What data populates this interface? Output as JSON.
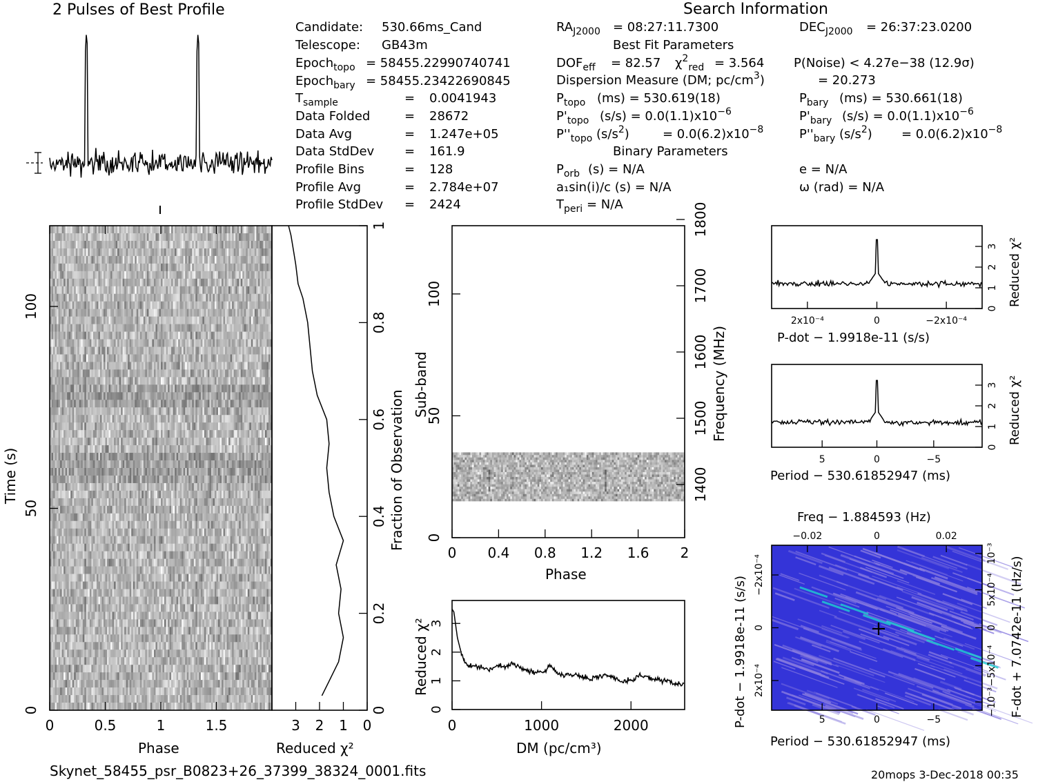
{
  "title": "2 Pulses of Best Profile",
  "search_info": {
    "heading": "Search Information",
    "best_fit_heading": "Best Fit Parameters",
    "binary_heading": "Binary Parameters"
  },
  "candidate_info": [
    {
      "label": "Candidate:",
      "value": "530.66ms_Cand"
    },
    {
      "label": "Telescope:",
      "value": "GB43m"
    },
    {
      "label": "Epoch_topo",
      "value": "= 58455.22990740741"
    },
    {
      "label": "Epoch_bary",
      "value": "= 58455.23422690845"
    },
    {
      "label": "T_sample",
      "value": "0.0041943"
    },
    {
      "label": "Data Folded",
      "value": "28672"
    },
    {
      "label": "Data Avg",
      "value": "1.247e+05"
    },
    {
      "label": "Data StdDev",
      "value": "161.9"
    },
    {
      "label": "Profile Bins",
      "value": "128"
    },
    {
      "label": "Profile Avg",
      "value": "2.784e+07"
    },
    {
      "label": "Profile StdDev",
      "value": "2424"
    }
  ],
  "search_values": {
    "ra": "= 08:27:11.7300",
    "dec": "= 26:37:23.0200",
    "dof": "= 82.57",
    "chi2": "= 3.564",
    "pnoise": "P(Noise) < 4.27e−38  (12.9σ)",
    "dm": "= 20.273",
    "p_topo": "(ms) =  530.619(18)",
    "p_bary": "(ms) =  530.661(18)",
    "pd_topo": "(s/s) = 0.0(1.1)x10",
    "pd_bary": "(s/s) = 0.0(1.1)x10",
    "pdd_topo": "= 0.0(6.2)x10",
    "pdd_bary": "= 0.0(6.2)x10",
    "p_orb": "(s) = N/A",
    "a1sini": "a₁sin(i)/c (s) = N/A",
    "t_peri": "= N/A",
    "e": "e = N/A",
    "omega": "ω (rad) = N/A"
  },
  "footer": {
    "filename": "Skynet_58455_psr_B0823+26_37399_38324_0001.fits",
    "stamp": "20mops   3-Dec-2018 00:35"
  },
  "chart_data": [
    {
      "type": "line",
      "name": "profile",
      "title": "2 Pulses of Best Profile",
      "x": [
        0,
        2
      ],
      "pulse_phases": [
        0.33,
        1.33
      ],
      "xlabel": "",
      "ylabel": ""
    },
    {
      "type": "heatmap",
      "name": "time-phase",
      "xlabel": "Phase",
      "ylabel": "Time (s)",
      "xlim": [
        0,
        2
      ],
      "ylim": [
        0,
        120
      ],
      "xticks": [
        "0",
        "0.5",
        "1",
        "1.5"
      ],
      "yticks": [
        "0",
        "50",
        "100"
      ]
    },
    {
      "type": "line",
      "name": "chi2-vs-time",
      "xlabel": "Reduced χ²",
      "ylabel": "Fraction of Observation",
      "xlim": [
        4,
        0
      ],
      "ylim": [
        0,
        1
      ],
      "xticks": [
        "3",
        "2",
        "1",
        "0"
      ],
      "yticks": [
        "0",
        "0.2",
        "0.4",
        "0.6",
        "0.8",
        "1"
      ],
      "x": [
        1.9,
        1.6,
        1.2,
        1.0,
        1.2,
        1.1,
        1.3,
        1.0,
        1.4,
        1.6,
        1.7,
        1.6,
        1.7,
        2.1,
        2.3,
        2.4,
        2.5,
        2.7,
        2.9,
        3.0,
        3.1,
        3.2,
        3.3
      ],
      "y": [
        0.03,
        0.06,
        0.1,
        0.15,
        0.2,
        0.25,
        0.3,
        0.35,
        0.4,
        0.45,
        0.5,
        0.55,
        0.6,
        0.65,
        0.7,
        0.75,
        0.8,
        0.85,
        0.88,
        0.92,
        0.95,
        0.98,
        1.0
      ]
    },
    {
      "type": "heatmap",
      "name": "subband-phase",
      "xlabel": "Phase",
      "ylabel": "Sub-band",
      "y2label": "Frequency (MHz)",
      "xlim": [
        0,
        2
      ],
      "ylim": [
        0,
        128
      ],
      "xticks": [
        "0",
        "0.4",
        "0.8",
        "1.2",
        "1.6",
        "2"
      ],
      "yticks": [
        "0",
        "50",
        "100"
      ],
      "y2ticks": [
        "1400",
        "1500",
        "1600",
        "1700",
        "1800"
      ],
      "band": [
        15,
        35
      ]
    },
    {
      "type": "line",
      "name": "dm-curve",
      "xlabel": "DM (pc/cm³)",
      "ylabel": "Reduced χ²",
      "xlim": [
        0,
        2600
      ],
      "ylim": [
        0,
        3.8
      ],
      "xticks": [
        "0",
        "1000",
        "2000"
      ],
      "yticks": [
        "0",
        "1",
        "2",
        "3"
      ],
      "x": [
        0,
        20,
        60,
        100,
        150,
        200,
        300,
        400,
        500,
        600,
        700,
        800,
        900,
        1000,
        1100,
        1200,
        1300,
        1400,
        1500,
        1600,
        1700,
        1800,
        1900,
        2000,
        2100,
        2200,
        2300,
        2400,
        2500,
        2600
      ],
      "y": [
        3.5,
        3.4,
        2.5,
        2.0,
        1.6,
        1.5,
        1.5,
        1.4,
        1.5,
        1.5,
        1.6,
        1.4,
        1.3,
        1.3,
        1.5,
        1.2,
        1.2,
        1.2,
        1.1,
        1.1,
        1.2,
        1.1,
        1.0,
        1.0,
        1.2,
        1.1,
        1.0,
        1.0,
        0.9,
        0.9
      ]
    },
    {
      "type": "line",
      "name": "pdot-curve",
      "xlabel": "P-dot − 1.9918e-11 (s/s)",
      "ylabel": "Reduced χ²",
      "xticks": [
        "2x10⁻⁴",
        "0",
        "−2x10⁻⁴"
      ],
      "yticks": [
        "0",
        "1",
        "2",
        "3"
      ],
      "peak": 3.7,
      "baseline": 1.2
    },
    {
      "type": "line",
      "name": "period-curve",
      "xlabel": "Period − 530.61852947 (ms)",
      "ylabel": "Reduced χ²",
      "xticks": [
        "5",
        "0",
        "−5"
      ],
      "yticks": [
        "0",
        "1",
        "2",
        "3"
      ],
      "peak": 3.6,
      "baseline": 1.2
    },
    {
      "type": "heatmap",
      "name": "p-pdot-plane",
      "title": "Freq − 1.884593 (Hz)",
      "xlabel": "Period − 530.61852947 (ms)",
      "ylabel": "P-dot − 1.9918e-11 (s/s)",
      "y2label": "F-dot + 7.0742e-11 (Hz/s)",
      "xticks": [
        "5",
        "0",
        "−5"
      ],
      "x2ticks": [
        "−0.02",
        "0",
        "0.02"
      ],
      "yticks": [
        "2x10⁻⁴",
        "0",
        "−2x10⁻⁴"
      ],
      "y2ticks": [
        "−10⁻³",
        "−5x10⁻⁴",
        "0",
        "5x10⁻⁴",
        "10⁻³"
      ],
      "colors": {
        "bg": "#3434d8",
        "streak": "#8a7de0",
        "peak": "#20d0d0"
      }
    }
  ]
}
